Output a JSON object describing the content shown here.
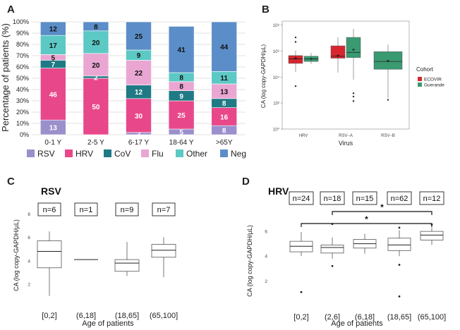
{
  "panels": {
    "A": "A",
    "B": "B",
    "C": "C",
    "D": "D"
  },
  "colors": {
    "RSV": "#9b8fcc",
    "HRV": "#e8488a",
    "CoV": "#1f7a85",
    "Flu": "#eaa6d2",
    "Other": "#5cc9c5",
    "Neg": "#5b8ec8",
    "ecovir": "#d7262e",
    "guerande": "#3a9a72"
  },
  "chart_data": [
    {
      "type": "bar",
      "stacked": true,
      "title": "",
      "ylabel": "Percentage of patients (%)",
      "ylim": [
        0,
        100
      ],
      "yticks": [
        "0%",
        "10%",
        "20%",
        "30%",
        "40%",
        "50%",
        "60%",
        "70%",
        "80%",
        "90%",
        "100%"
      ],
      "categories": [
        "0-1 Y",
        "2-5 Y",
        "6-17 Y",
        "18-64 Y",
        ">65Y"
      ],
      "series": [
        {
          "name": "RSV",
          "values": [
            13,
            0,
            2,
            5,
            8
          ],
          "labels": [
            "13",
            "0",
            "2",
            "5",
            "8"
          ]
        },
        {
          "name": "HRV",
          "values": [
            46,
            50,
            30,
            25,
            16
          ],
          "labels": [
            "46",
            "50",
            "30",
            "25",
            "16"
          ]
        },
        {
          "name": "CoV",
          "values": [
            7,
            2,
            12,
            9,
            8
          ],
          "labels": [
            "7",
            "2",
            "12",
            "9",
            "8"
          ]
        },
        {
          "name": "Flu",
          "values": [
            5,
            20,
            22,
            8,
            13
          ],
          "labels": [
            "5",
            "20",
            "22",
            "8",
            "13"
          ]
        },
        {
          "name": "Other",
          "values": [
            17,
            20,
            9,
            8,
            11
          ],
          "labels": [
            "17",
            "20",
            "9",
            "8",
            "11"
          ]
        },
        {
          "name": "Neg",
          "values": [
            12,
            8,
            25,
            41,
            44
          ],
          "labels": [
            "12",
            "8",
            "25",
            "41",
            "44"
          ]
        }
      ],
      "legend": [
        "RSV",
        "HRV",
        "CoV",
        "Flu",
        "Other",
        "Neg"
      ],
      "legend_position": "bottom"
    },
    {
      "type": "boxplot",
      "xlabel": "Virus",
      "ylabel": "CA (log copy-GAPDH/µL)",
      "categories": [
        "HRV",
        "RSV−A",
        "RSV−B"
      ],
      "yscale": "log",
      "yticks": [
        "10⁰",
        "10²",
        "10⁴",
        "10⁶",
        "10⁸"
      ],
      "ylim_log10": [
        0,
        8.3
      ],
      "legend_title": "Cohort",
      "legend": [
        "ECOVIR",
        "Guerande"
      ],
      "boxes": [
        {
          "x": "HRV",
          "cohort": "ECOVIR",
          "whislo": 4.4,
          "q1": 5.05,
          "med": 5.4,
          "q3": 5.65,
          "whishi": 6.05,
          "mean": 5.45,
          "outliers": [
            3.3,
            6.7,
            7.05
          ]
        },
        {
          "x": "HRV",
          "cohort": "Guerande",
          "whislo": 5.0,
          "q1": 5.2,
          "med": 5.4,
          "q3": 5.6,
          "whishi": 5.85,
          "mean": 5.4,
          "outliers": []
        },
        {
          "x": "RSV−A",
          "cohort": "ECOVIR",
          "whislo": 4.35,
          "q1": 5.45,
          "med": 5.6,
          "q3": 6.4,
          "whishi": 7.05,
          "mean": 5.65,
          "outliers": []
        },
        {
          "x": "RSV−A",
          "cohort": "Guerande",
          "whislo": 3.8,
          "q1": 5.5,
          "med": 5.9,
          "q3": 7.05,
          "whishi": 7.7,
          "mean": 6.1,
          "outliers": [
            2.15,
            2.5,
            2.75
          ]
        },
        {
          "x": "RSV−B",
          "cohort": "Guerande",
          "whislo": 2.4,
          "q1": 4.6,
          "med": 5.2,
          "q3": 5.95,
          "whishi": 6.5,
          "mean": 5.25,
          "outliers": [
            2.25
          ]
        }
      ]
    },
    {
      "type": "boxplot",
      "title": "RSV",
      "xlabel": "Age of patients",
      "ylabel": "CA (log copy-GAPDH/µL)",
      "categories": [
        "[0,2]",
        "(6,18]",
        "(18,65]",
        "(65,100]"
      ],
      "ylim": [
        0.5,
        8.8
      ],
      "yticks": [
        2,
        4,
        6,
        8
      ],
      "counts": [
        "n=6",
        "n=1",
        "n=9",
        "n=7"
      ],
      "boxes": [
        {
          "x": "[0,2]",
          "whislo": 1.0,
          "q1": 3.4,
          "med": 4.8,
          "q3": 5.7,
          "whishi": 6.5,
          "outliers": []
        },
        {
          "x": "(6,18]",
          "whislo": 4.1,
          "q1": 4.1,
          "med": 4.1,
          "q3": 4.1,
          "whishi": 4.1,
          "outliers": []
        },
        {
          "x": "(18,65]",
          "whislo": 2.7,
          "q1": 3.1,
          "med": 3.8,
          "q3": 4.1,
          "whishi": 5.6,
          "outliers": []
        },
        {
          "x": "(65,100]",
          "whislo": 2.6,
          "q1": 4.3,
          "med": 4.9,
          "q3": 5.4,
          "whishi": 6.0,
          "outliers": []
        }
      ]
    },
    {
      "type": "boxplot",
      "title": "HRV",
      "xlabel": "Age of patients",
      "ylabel": "CA (log copy-GAPDH/µL)",
      "categories": [
        "[0,2]",
        "(2,6]",
        "(6,18]",
        "(18,65]",
        "(65,100]"
      ],
      "ylim": [
        0.2,
        7.6
      ],
      "yticks": [
        2,
        4,
        6
      ],
      "counts": [
        "n=24",
        "n=18",
        "n=15",
        "n=62",
        "n=12"
      ],
      "significance": [
        {
          "from": "(2,6]",
          "to": "(65,100]",
          "label": "*"
        },
        {
          "from": "[0,2]",
          "to": "(65,100]",
          "label": "*"
        }
      ],
      "boxes": [
        {
          "x": "[0,2]",
          "whislo": 4.0,
          "q1": 4.35,
          "med": 4.8,
          "q3": 5.2,
          "whishi": 5.95,
          "outliers": [
            1.1
          ]
        },
        {
          "x": "(2,6]",
          "whislo": 3.8,
          "q1": 4.25,
          "med": 4.7,
          "q3": 4.9,
          "whishi": 5.5,
          "outliers": [
            3.2,
            6.6
          ]
        },
        {
          "x": "(6,18]",
          "whislo": 4.2,
          "q1": 4.65,
          "med": 5.0,
          "q3": 5.35,
          "whishi": 5.8,
          "outliers": []
        },
        {
          "x": "(18,65]",
          "whislo": 4.0,
          "q1": 4.45,
          "med": 4.9,
          "q3": 5.45,
          "whishi": 6.1,
          "outliers": [
            0.75,
            3.3,
            6.3
          ]
        },
        {
          "x": "(65,100]",
          "whislo": 4.9,
          "q1": 5.3,
          "med": 5.7,
          "q3": 6.0,
          "whishi": 6.3,
          "outliers": [
            6.55
          ]
        }
      ]
    }
  ]
}
